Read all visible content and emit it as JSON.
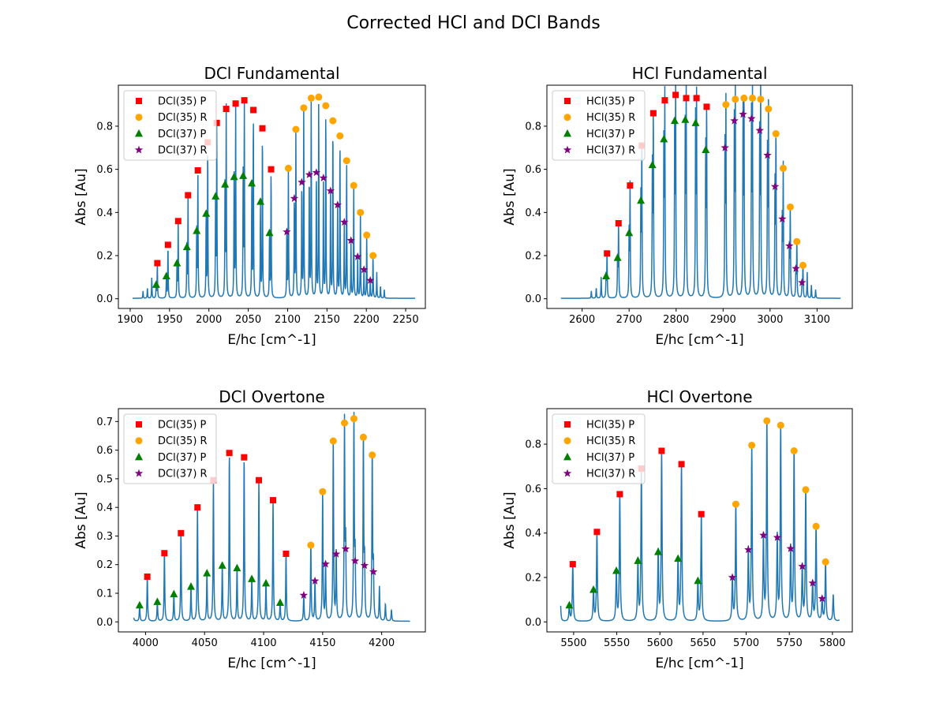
{
  "figure": {
    "title": "Corrected HCl and DCl Bands"
  },
  "colors": {
    "spectrum": "#1f77b4",
    "P35": "#ff0000",
    "R35": "#ffa500",
    "P37": "#008000",
    "R37": "#800080"
  },
  "chart_data": [
    {
      "type": "line",
      "title": "DCl Fundamental",
      "xlabel": "E/hc [cm^-1]",
      "ylabel": "Abs [Au]",
      "xlim": [
        1885,
        2275
      ],
      "ylim": [
        -0.045,
        0.99
      ],
      "xticks": [
        1900,
        1950,
        2000,
        2050,
        2100,
        2150,
        2200,
        2250
      ],
      "yticks": [
        0.0,
        0.2,
        0.4,
        0.6,
        0.8
      ],
      "grid": false,
      "legend_position": "top-left",
      "x_range": [
        1903,
        2262
      ],
      "series": [
        {
          "name": "DCl(35) P",
          "marker": "square",
          "x": [
            1934.5,
            1948,
            1961,
            1973.5,
            1986,
            1998.5,
            2010,
            2022,
            2034,
            2045,
            2056.5,
            2068,
            2079
          ],
          "y": [
            0.165,
            0.25,
            0.36,
            0.48,
            0.595,
            0.725,
            0.815,
            0.88,
            0.905,
            0.92,
            0.875,
            0.79,
            0.6
          ]
        },
        {
          "name": "DCl(35) R",
          "marker": "circle",
          "x": [
            2101,
            2110.5,
            2120.5,
            2130,
            2139.5,
            2148.5,
            2157.5,
            2166.5,
            2175,
            2184,
            2192.5,
            2200.5,
            2208.5
          ],
          "y": [
            0.605,
            0.785,
            0.885,
            0.93,
            0.935,
            0.895,
            0.825,
            0.755,
            0.64,
            0.525,
            0.4,
            0.295,
            0.2
          ]
        },
        {
          "name": "DCl(37) P",
          "marker": "triangle",
          "x": [
            1933,
            1946,
            1959.5,
            1972,
            1984.5,
            1996.5,
            2008.5,
            2020.5,
            2032,
            2043.5,
            2054.5,
            2065.5,
            2077
          ],
          "y": [
            0.065,
            0.105,
            0.165,
            0.24,
            0.315,
            0.395,
            0.475,
            0.53,
            0.565,
            0.57,
            0.535,
            0.45,
            0.305
          ]
        },
        {
          "name": "DCl(37) R",
          "marker": "star",
          "x": [
            2099,
            2108.5,
            2118,
            2127.5,
            2136.5,
            2145.5,
            2154.5,
            2163.5,
            2172,
            2180.5,
            2189,
            2197,
            2205
          ],
          "y": [
            0.31,
            0.465,
            0.54,
            0.575,
            0.585,
            0.56,
            0.5,
            0.435,
            0.355,
            0.27,
            0.195,
            0.135,
            0.085
          ]
        }
      ]
    },
    {
      "type": "line",
      "title": "HCl Fundamental",
      "xlabel": "E/hc [cm^-1]",
      "ylabel": "Abs [Au]",
      "xlim": [
        2525,
        3175
      ],
      "ylim": [
        -0.045,
        0.99
      ],
      "xticks": [
        2600,
        2700,
        2800,
        2900,
        3000,
        3100
      ],
      "yticks": [
        0.0,
        0.2,
        0.4,
        0.6,
        0.8
      ],
      "grid": false,
      "legend_position": "top-left",
      "x_range": [
        2555,
        3150
      ],
      "series": [
        {
          "name": "HCl(35) P",
          "marker": "square",
          "x": [
            2653,
            2677.5,
            2702,
            2727,
            2751.5,
            2776,
            2799,
            2821.5,
            2843.5,
            2865
          ],
          "y": [
            0.21,
            0.35,
            0.525,
            0.71,
            0.86,
            0.92,
            0.945,
            0.93,
            0.93,
            0.89
          ]
        },
        {
          "name": "HCl(35) R",
          "marker": "circle",
          "x": [
            2906,
            2926,
            2944.5,
            2962.5,
            2980,
            2996.5,
            3012.5,
            3028,
            3043,
            3057,
            3070
          ],
          "y": [
            0.9,
            0.925,
            0.93,
            0.93,
            0.925,
            0.88,
            0.765,
            0.605,
            0.425,
            0.265,
            0.155
          ]
        },
        {
          "name": "HCl(37) P",
          "marker": "triangle",
          "x": [
            2651,
            2675.5,
            2700,
            2725,
            2749.5,
            2774,
            2797,
            2819.5,
            2841.5,
            2863
          ],
          "y": [
            0.105,
            0.19,
            0.305,
            0.455,
            0.62,
            0.74,
            0.825,
            0.83,
            0.815,
            0.69
          ]
        },
        {
          "name": "HCl(37) R",
          "marker": "star",
          "x": [
            2904,
            2924,
            2942.5,
            2960.5,
            2978,
            2994.5,
            3010.5,
            3026,
            3041,
            3055,
            3068
          ],
          "y": [
            0.7,
            0.825,
            0.855,
            0.835,
            0.78,
            0.665,
            0.52,
            0.37,
            0.245,
            0.14,
            0.075
          ]
        }
      ]
    },
    {
      "type": "line",
      "title": "DCl Overtone",
      "xlabel": "E/hc [cm^-1]",
      "ylabel": "Abs [Au]",
      "xlim": [
        3977,
        4237
      ],
      "ylim": [
        -0.035,
        0.745
      ],
      "xticks": [
        4000,
        4050,
        4100,
        4150,
        4200
      ],
      "yticks": [
        0.0,
        0.1,
        0.2,
        0.3,
        0.4,
        0.5,
        0.6,
        0.7
      ],
      "grid": false,
      "legend_position": "top-left",
      "x_range": [
        3990,
        4224
      ],
      "series": [
        {
          "name": "DCl(35) P",
          "marker": "square",
          "x": [
            4001.5,
            4016,
            4030,
            4044,
            4057.5,
            4071,
            4083.5,
            4096,
            4108,
            4119
          ],
          "y": [
            0.158,
            0.24,
            0.31,
            0.4,
            0.495,
            0.59,
            0.575,
            0.495,
            0.425,
            0.238
          ]
        },
        {
          "name": "DCl(35) R",
          "marker": "circle",
          "x": [
            4140,
            4150,
            4159,
            4168.5,
            4176.5,
            4184.5,
            4192
          ],
          "y": [
            0.268,
            0.455,
            0.632,
            0.695,
            0.71,
            0.645,
            0.583
          ]
        },
        {
          "name": "DCl(37) P",
          "marker": "triangle",
          "x": [
            3995,
            4010,
            4024,
            4038.5,
            4052,
            4065,
            4077.5,
            4090,
            4102,
            4114
          ],
          "y": [
            0.058,
            0.07,
            0.097,
            0.123,
            0.17,
            0.197,
            0.188,
            0.15,
            0.135,
            0.067
          ]
        },
        {
          "name": "DCl(37) R",
          "marker": "star",
          "x": [
            4134,
            4143.5,
            4152.5,
            4161.5,
            4169.5,
            4177.5,
            4185.5,
            4193
          ],
          "y": [
            0.093,
            0.143,
            0.202,
            0.237,
            0.255,
            0.213,
            0.197,
            0.175
          ]
        }
      ]
    },
    {
      "type": "line",
      "title": "HCl Overtone",
      "xlabel": "E/hc [cm^-1]",
      "ylabel": "Abs [Au]",
      "xlim": [
        5469,
        5823
      ],
      "ylim": [
        -0.045,
        0.96
      ],
      "xticks": [
        5500,
        5550,
        5600,
        5650,
        5700,
        5750,
        5800
      ],
      "yticks": [
        0.0,
        0.2,
        0.4,
        0.6,
        0.8
      ],
      "grid": false,
      "legend_position": "top-left",
      "x_range": [
        5485,
        5808
      ],
      "series": [
        {
          "name": "HCl(35) P",
          "marker": "square",
          "x": [
            5499,
            5527,
            5553.5,
            5578.5,
            5602,
            5625,
            5648
          ],
          "y": [
            0.26,
            0.405,
            0.575,
            0.69,
            0.77,
            0.71,
            0.485
          ]
        },
        {
          "name": "HCl(35) R",
          "marker": "circle",
          "x": [
            5688,
            5706.5,
            5724,
            5740,
            5755.5,
            5769,
            5781,
            5792
          ],
          "y": [
            0.53,
            0.795,
            0.905,
            0.885,
            0.77,
            0.595,
            0.43,
            0.27
          ]
        },
        {
          "name": "HCl(37) P",
          "marker": "triangle",
          "x": [
            5495,
            5523,
            5549.5,
            5574.5,
            5598,
            5621,
            5644
          ],
          "y": [
            0.075,
            0.145,
            0.23,
            0.275,
            0.315,
            0.285,
            0.185
          ]
        },
        {
          "name": "HCl(37) R",
          "marker": "star",
          "x": [
            5684,
            5702.5,
            5720,
            5736,
            5751.5,
            5765,
            5777,
            5788
          ],
          "y": [
            0.2,
            0.325,
            0.39,
            0.38,
            0.33,
            0.25,
            0.175,
            0.105
          ]
        }
      ]
    }
  ]
}
